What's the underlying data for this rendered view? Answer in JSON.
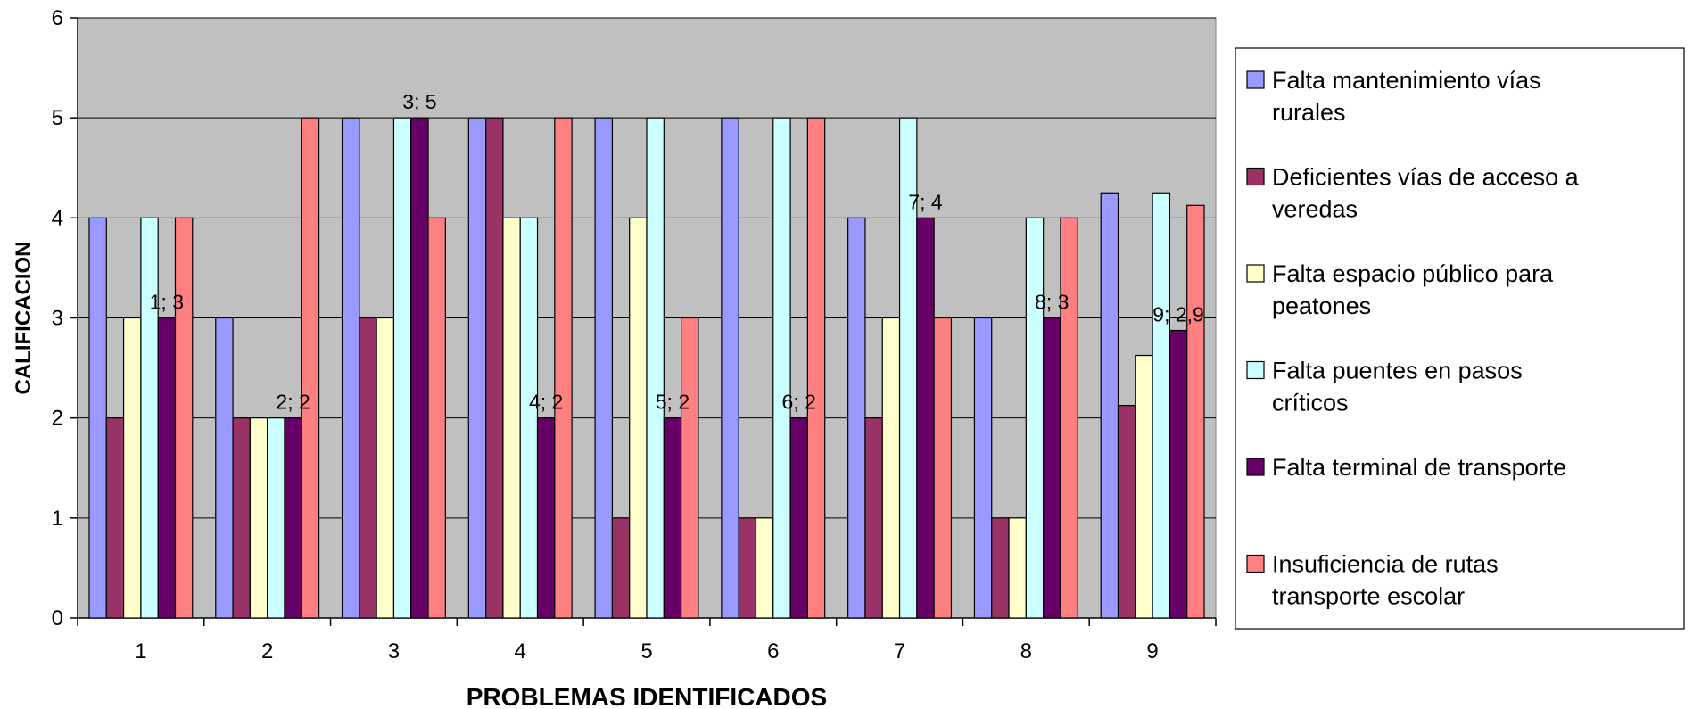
{
  "chart_data": {
    "type": "bar",
    "xlabel": "PROBLEMAS IDENTIFICADOS",
    "ylabel": "CALIFICACION",
    "ylim": [
      0,
      6
    ],
    "yticks": [
      "0",
      "1",
      "2",
      "3",
      "4",
      "5",
      "6"
    ],
    "grid": "horizontal",
    "legend_position": "right",
    "categories": [
      "1",
      "2",
      "3",
      "4",
      "5",
      "6",
      "7",
      "8",
      "9"
    ],
    "series": [
      {
        "name": "Falta mantenimiento vías rurales",
        "color": "#9999ff",
        "values": [
          4,
          3,
          5,
          5,
          5,
          5,
          4,
          3,
          4.25
        ]
      },
      {
        "name": "Deficientes vías de acceso a veredas",
        "color": "#993366",
        "values": [
          2,
          2,
          3,
          5,
          1,
          1,
          2,
          1,
          2.125
        ]
      },
      {
        "name": "Falta espacio público para peatones",
        "color": "#ffffcc",
        "values": [
          3,
          2,
          3,
          4,
          4,
          1,
          3,
          1,
          2.625
        ]
      },
      {
        "name": "Falta puentes en pasos críticos",
        "color": "#ccffff",
        "values": [
          4,
          2,
          5,
          4,
          5,
          5,
          5,
          4,
          4.25
        ]
      },
      {
        "name": "Falta terminal de transporte",
        "color": "#660066",
        "values": [
          3,
          2,
          5,
          2,
          2,
          2,
          4,
          3,
          2.875
        ]
      },
      {
        "name": "Insuficiencia de rutas transporte escolar",
        "color": "#ff8080",
        "values": [
          4,
          5,
          4,
          5,
          3,
          5,
          3,
          4,
          4.125
        ]
      }
    ],
    "data_labels": [
      "1; 3",
      "2; 2",
      "3; 5",
      "4; 2",
      "5; 2",
      "6; 2",
      "7; 4",
      "8; 3",
      "9; 2,9"
    ],
    "data_label_series": 4,
    "plot_background": "#c0c0c0"
  }
}
